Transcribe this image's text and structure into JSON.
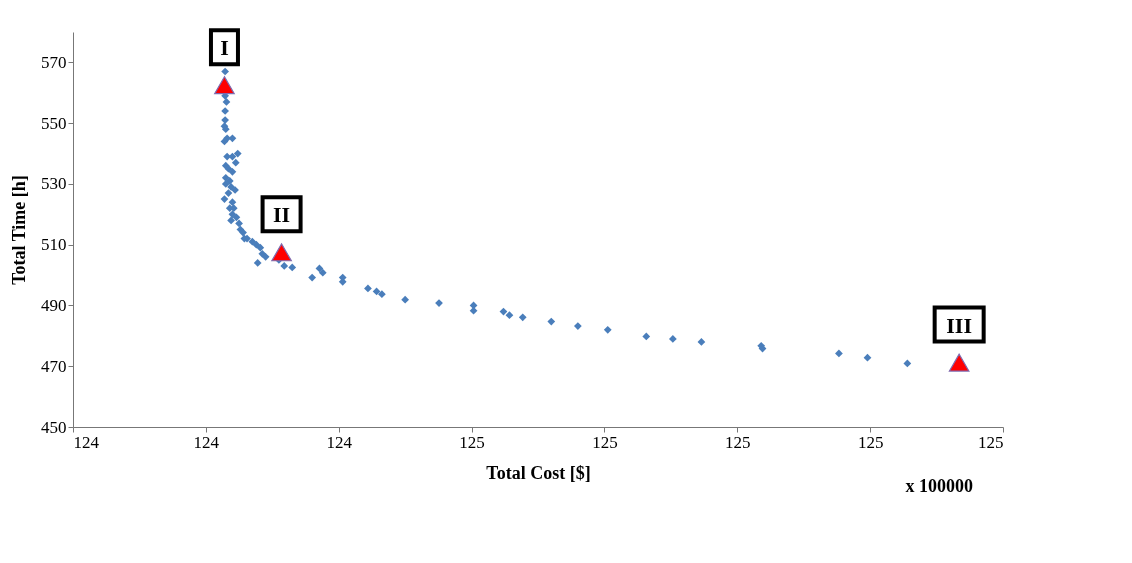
{
  "chart_data": {
    "type": "scatter",
    "xlabel": "Total Cost [$]",
    "ylabel": "Total Time [h]",
    "xlim": [
      124.0,
      125.4
    ],
    "ylim": [
      450,
      580
    ],
    "xticks": [
      {
        "value": 124.0,
        "label": "124"
      },
      {
        "value": 124.2,
        "label": "124"
      },
      {
        "value": 124.4,
        "label": "124"
      },
      {
        "value": 124.6,
        "label": "125"
      },
      {
        "value": 124.8,
        "label": "125"
      },
      {
        "value": 125.0,
        "label": "125"
      },
      {
        "value": 125.2,
        "label": "125"
      },
      {
        "value": 125.4,
        "label": "125"
      }
    ],
    "yticks": [
      450,
      470,
      490,
      510,
      530,
      550,
      570
    ],
    "grid": false,
    "series": [
      {
        "color": "#4a7ebb",
        "marker": "diamond",
        "x": [
          124.229,
          124.229,
          124.231,
          124.229,
          124.229,
          124.228,
          124.23,
          124.232,
          124.24,
          124.228,
          124.232,
          124.24,
          124.248,
          124.245,
          124.23,
          124.234,
          124.24,
          124.23,
          124.236,
          124.23,
          124.238,
          124.244,
          124.234,
          124.228,
          124.24,
          124.236,
          124.242,
          124.24,
          124.246,
          124.238,
          124.25,
          124.252,
          124.256,
          124.258,
          124.262,
          124.27,
          124.276,
          124.282,
          124.285,
          124.29,
          124.278,
          124.31,
          124.318,
          124.33,
          124.36,
          124.371,
          124.376,
          124.406,
          124.406,
          124.444,
          124.457,
          124.465,
          124.5,
          124.551,
          124.603,
          124.603,
          124.648,
          124.657,
          124.677,
          124.72,
          124.76,
          124.805,
          124.863,
          124.903,
          124.946,
          125.036,
          125.038,
          125.153,
          125.196,
          125.256
        ],
        "values": [
          567,
          559,
          557,
          554,
          551,
          549,
          548,
          545,
          545,
          544,
          539,
          539,
          540,
          537,
          536,
          535,
          534,
          532,
          531,
          530,
          529,
          528,
          527,
          525,
          524,
          522,
          522,
          520,
          519,
          518,
          517,
          515,
          514,
          512,
          512,
          511,
          510,
          509,
          507,
          506,
          504,
          505,
          503,
          502.5,
          499.2,
          502.2,
          500.8,
          499.2,
          497.8,
          495.6,
          494.6,
          493.7,
          491.9,
          490.8,
          490,
          488.3,
          488,
          486.8,
          486.1,
          484.7,
          483.2,
          482,
          479.8,
          479,
          478,
          476.7,
          475.8,
          474.2,
          472.8,
          470.9
        ]
      },
      {
        "color": "#ff0000",
        "marker": "triangle",
        "x": [
          124.228,
          124.314,
          125.334
        ],
        "values": [
          562.5,
          507.5,
          471.2
        ]
      }
    ],
    "annotations": [
      {
        "text": "I",
        "x": 124.228,
        "y": 562.5
      },
      {
        "text": "II",
        "x": 124.314,
        "y": 507.5
      },
      {
        "text": "III",
        "x": 125.334,
        "y": 471.2
      },
      "x 100000"
    ]
  }
}
